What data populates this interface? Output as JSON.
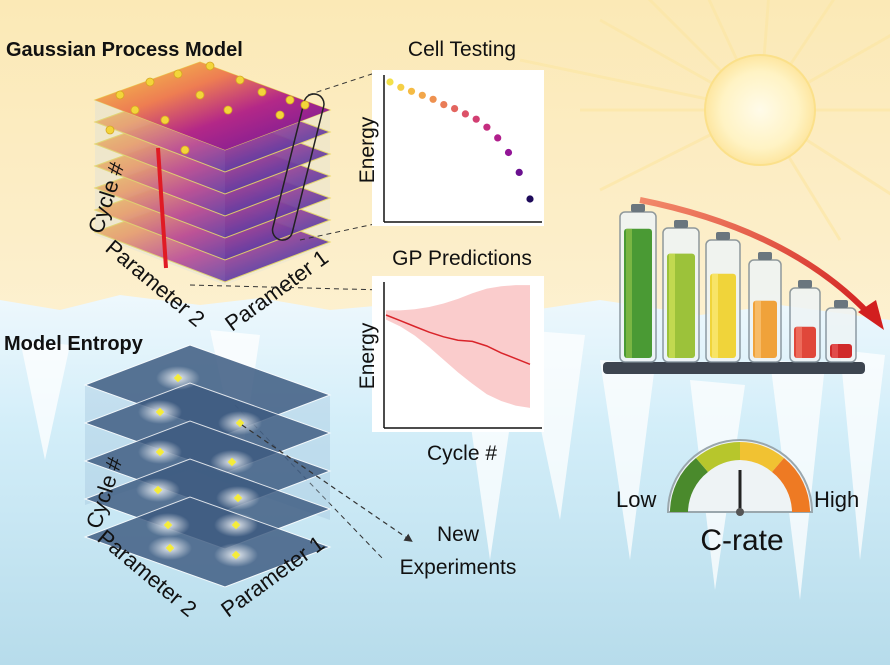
{
  "titles": {
    "gp_model": "Gaussian Process Model",
    "model_entropy": "Model Entropy"
  },
  "gp_cube": {
    "axis_cycle": "Cycle #",
    "axis_param1": "Parameter 1",
    "axis_param2": "Parameter 2"
  },
  "entropy_cube": {
    "axis_cycle": "Cycle #",
    "axis_param1": "Parameter 1",
    "axis_param2": "Parameter 2"
  },
  "new_experiments": {
    "line1": "New",
    "line2": "Experiments"
  },
  "cell_testing": {
    "title": "Cell Testing",
    "ylabel": "Energy"
  },
  "gp_predictions": {
    "title": "GP Predictions",
    "ylabel": "Energy",
    "xlabel": "Cycle #"
  },
  "gauge": {
    "low": "Low",
    "high": "High",
    "title": "C-rate"
  },
  "chart_data": [
    {
      "type": "scatter",
      "title": "Cell Testing",
      "ylabel": "Energy",
      "x": [
        0,
        1,
        2,
        3,
        4,
        5,
        6,
        7,
        8,
        9,
        10,
        11,
        12,
        13
      ],
      "y": [
        1.0,
        0.96,
        0.93,
        0.9,
        0.87,
        0.83,
        0.8,
        0.76,
        0.72,
        0.66,
        0.58,
        0.47,
        0.32,
        0.12
      ],
      "colors": [
        "#f3e14a",
        "#f5cf46",
        "#f5bb44",
        "#f2a64a",
        "#ee9150",
        "#e97c57",
        "#e3655f",
        "#dc5168",
        "#d23e72",
        "#c42d7f",
        "#b01f8c",
        "#931597",
        "#6a108f",
        "#1e0a5a"
      ]
    },
    {
      "type": "line",
      "title": "GP Predictions",
      "xlabel": "Cycle #",
      "ylabel": "Energy",
      "x": [
        0,
        1,
        2,
        3,
        4,
        5,
        6,
        7,
        8,
        9,
        10
      ],
      "mean": [
        0.95,
        0.9,
        0.85,
        0.8,
        0.76,
        0.73,
        0.72,
        0.68,
        0.62,
        0.57,
        0.52
      ],
      "upper": [
        0.99,
        0.99,
        1.0,
        1.02,
        1.05,
        1.09,
        1.14,
        1.18,
        1.2,
        1.21,
        1.21
      ],
      "lower": [
        0.91,
        0.85,
        0.77,
        0.67,
        0.56,
        0.45,
        0.35,
        0.26,
        0.2,
        0.16,
        0.14
      ]
    },
    {
      "type": "bar",
      "values": [
        0.95,
        0.87,
        0.78,
        0.65,
        0.52,
        0.35
      ]
    }
  ]
}
